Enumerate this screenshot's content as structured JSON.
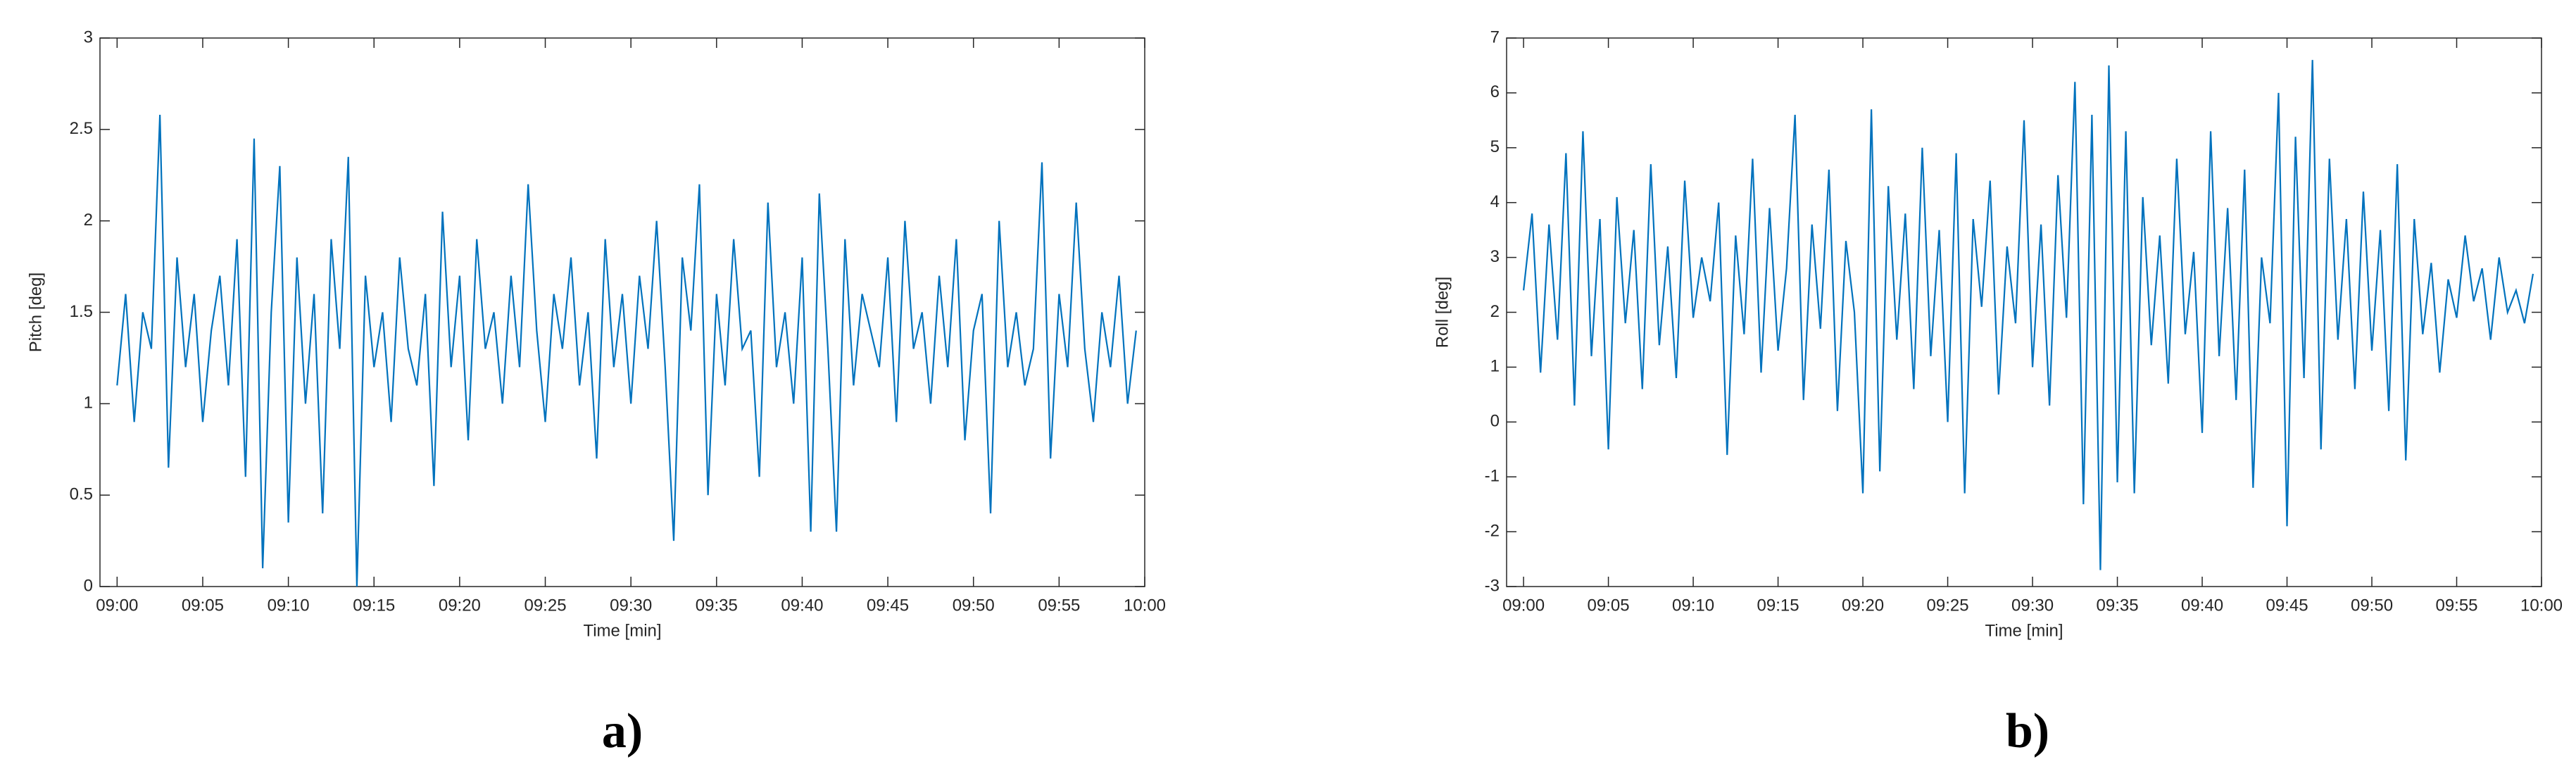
{
  "chart_data": [
    {
      "type": "line",
      "caption": "a)",
      "x_label": "Time [min]",
      "y_label": "Pitch [deg]",
      "x": [
        0,
        0.5,
        1,
        1.5,
        2,
        2.5,
        3,
        3.5,
        4,
        4.5,
        5,
        5.5,
        6,
        6.5,
        7,
        7.5,
        8,
        8.5,
        9,
        9.5,
        10,
        10.5,
        11,
        11.5,
        12,
        12.5,
        13,
        13.5,
        14,
        14.5,
        15,
        15.5,
        16,
        16.5,
        17,
        17.5,
        18,
        18.5,
        19,
        19.5,
        20,
        20.5,
        21,
        21.5,
        22,
        22.5,
        23,
        23.5,
        24,
        24.5,
        25,
        25.5,
        26,
        26.5,
        27,
        27.5,
        28,
        28.5,
        29,
        29.5,
        30,
        30.5,
        31,
        31.5,
        32,
        32.5,
        33,
        33.5,
        34,
        34.5,
        35,
        35.5,
        36,
        36.5,
        37,
        37.5,
        38,
        38.5,
        39,
        39.5,
        40,
        40.5,
        41,
        41.5,
        42,
        42.5,
        43,
        43.5,
        44,
        44.5,
        45,
        45.5,
        46,
        46.5,
        47,
        47.5,
        48,
        48.5,
        49,
        49.5,
        50,
        50.5,
        51,
        51.5,
        52,
        52.5,
        53,
        53.5,
        54,
        54.5,
        55,
        55.5,
        56,
        56.5,
        57,
        57.5,
        58,
        58.5,
        59,
        59.5
      ],
      "series": [
        {
          "name": "Pitch",
          "color": "#0072BD",
          "values": [
            1.1,
            1.6,
            0.9,
            1.5,
            1.3,
            2.58,
            0.65,
            1.8,
            1.2,
            1.6,
            0.9,
            1.4,
            1.7,
            1.1,
            1.9,
            0.6,
            2.45,
            0.1,
            1.5,
            2.3,
            0.35,
            1.8,
            1.0,
            1.6,
            0.4,
            1.9,
            1.3,
            2.35,
            0.0,
            1.7,
            1.2,
            1.5,
            0.9,
            1.8,
            1.3,
            1.1,
            1.6,
            0.55,
            2.05,
            1.2,
            1.7,
            0.8,
            1.9,
            1.3,
            1.5,
            1.0,
            1.7,
            1.2,
            2.2,
            1.4,
            0.9,
            1.6,
            1.3,
            1.8,
            1.1,
            1.5,
            0.7,
            1.9,
            1.2,
            1.6,
            1.0,
            1.7,
            1.3,
            2.0,
            1.2,
            0.25,
            1.8,
            1.4,
            2.2,
            0.5,
            1.6,
            1.1,
            1.9,
            1.3,
            1.4,
            0.6,
            2.1,
            1.2,
            1.5,
            1.0,
            1.8,
            0.3,
            2.15,
            1.3,
            0.3,
            1.9,
            1.1,
            1.6,
            1.4,
            1.2,
            1.8,
            0.9,
            2.0,
            1.3,
            1.5,
            1.0,
            1.7,
            1.2,
            1.9,
            0.8,
            1.4,
            1.6,
            0.4,
            2.0,
            1.2,
            1.5,
            1.1,
            1.3,
            2.32,
            0.7,
            1.6,
            1.2,
            2.1,
            1.3,
            0.9,
            1.5,
            1.2,
            1.7,
            1.0,
            1.4
          ]
        }
      ],
      "xlim": [
        -1,
        60
      ],
      "ylim": [
        0,
        3
      ],
      "yticks": [
        0,
        0.5,
        1,
        1.5,
        2,
        2.5,
        3
      ],
      "xticks": [
        {
          "value": 0,
          "label": "09:00"
        },
        {
          "value": 5,
          "label": "09:05"
        },
        {
          "value": 10,
          "label": "09:10"
        },
        {
          "value": 15,
          "label": "09:15"
        },
        {
          "value": 20,
          "label": "09:20"
        },
        {
          "value": 25,
          "label": "09:25"
        },
        {
          "value": 30,
          "label": "09:30"
        },
        {
          "value": 35,
          "label": "09:35"
        },
        {
          "value": 40,
          "label": "09:40"
        },
        {
          "value": 45,
          "label": "09:45"
        },
        {
          "value": 50,
          "label": "09:50"
        },
        {
          "value": 55,
          "label": "09:55"
        },
        {
          "value": 60,
          "label": "10:00"
        }
      ]
    },
    {
      "type": "line",
      "caption": "b)",
      "x_label": "Time [min]",
      "y_label": "Roll [deg]",
      "x": [
        0,
        0.5,
        1,
        1.5,
        2,
        2.5,
        3,
        3.5,
        4,
        4.5,
        5,
        5.5,
        6,
        6.5,
        7,
        7.5,
        8,
        8.5,
        9,
        9.5,
        10,
        10.5,
        11,
        11.5,
        12,
        12.5,
        13,
        13.5,
        14,
        14.5,
        15,
        15.5,
        16,
        16.5,
        17,
        17.5,
        18,
        18.5,
        19,
        19.5,
        20,
        20.5,
        21,
        21.5,
        22,
        22.5,
        23,
        23.5,
        24,
        24.5,
        25,
        25.5,
        26,
        26.5,
        27,
        27.5,
        28,
        28.5,
        29,
        29.5,
        30,
        30.5,
        31,
        31.5,
        32,
        32.5,
        33,
        33.5,
        34,
        34.5,
        35,
        35.5,
        36,
        36.5,
        37,
        37.5,
        38,
        38.5,
        39,
        39.5,
        40,
        40.5,
        41,
        41.5,
        42,
        42.5,
        43,
        43.5,
        44,
        44.5,
        45,
        45.5,
        46,
        46.5,
        47,
        47.5,
        48,
        48.5,
        49,
        49.5,
        50,
        50.5,
        51,
        51.5,
        52,
        52.5,
        53,
        53.5,
        54,
        54.5,
        55,
        55.5,
        56,
        56.5,
        57,
        57.5,
        58,
        58.5,
        59,
        59.5
      ],
      "series": [
        {
          "name": "Roll",
          "color": "#0072BD",
          "values": [
            2.4,
            3.8,
            0.9,
            3.6,
            1.5,
            4.9,
            0.3,
            5.3,
            1.2,
            3.7,
            -0.5,
            4.1,
            1.8,
            3.5,
            0.6,
            4.7,
            1.4,
            3.2,
            0.8,
            4.4,
            1.9,
            3.0,
            2.2,
            4.0,
            -0.6,
            3.4,
            1.6,
            4.8,
            0.9,
            3.9,
            1.3,
            2.8,
            5.6,
            0.4,
            3.6,
            1.7,
            4.6,
            0.2,
            3.3,
            2.0,
            -1.3,
            5.7,
            -0.9,
            4.3,
            1.5,
            3.8,
            0.6,
            5.0,
            1.2,
            3.5,
            0.0,
            4.9,
            -1.3,
            3.7,
            2.1,
            4.4,
            0.5,
            3.2,
            1.8,
            5.5,
            1.0,
            3.6,
            0.3,
            4.5,
            1.9,
            6.2,
            -1.5,
            5.6,
            -2.7,
            6.5,
            -1.1,
            5.3,
            -1.3,
            4.1,
            1.4,
            3.4,
            0.7,
            4.8,
            1.6,
            3.1,
            -0.2,
            5.3,
            1.2,
            3.9,
            0.4,
            4.6,
            -1.2,
            3.0,
            1.8,
            6.0,
            -1.9,
            5.2,
            0.8,
            6.6,
            -0.5,
            4.8,
            1.5,
            3.7,
            0.6,
            4.2,
            1.3,
            3.5,
            0.2,
            4.7,
            -0.7,
            3.7,
            1.6,
            2.9,
            0.9,
            2.6,
            1.9,
            3.4,
            2.2,
            2.8,
            1.5,
            3.0,
            2.0,
            2.4,
            1.8,
            2.7
          ]
        }
      ],
      "xlim": [
        -1,
        60
      ],
      "ylim": [
        -3,
        7
      ],
      "yticks": [
        -3,
        -2,
        -1,
        0,
        1,
        2,
        3,
        4,
        5,
        6,
        7
      ],
      "xticks": [
        {
          "value": 0,
          "label": "09:00"
        },
        {
          "value": 5,
          "label": "09:05"
        },
        {
          "value": 10,
          "label": "09:10"
        },
        {
          "value": 15,
          "label": "09:15"
        },
        {
          "value": 20,
          "label": "09:20"
        },
        {
          "value": 25,
          "label": "09:25"
        },
        {
          "value": 30,
          "label": "09:30"
        },
        {
          "value": 35,
          "label": "09:35"
        },
        {
          "value": 40,
          "label": "09:40"
        },
        {
          "value": 45,
          "label": "09:45"
        },
        {
          "value": 50,
          "label": "09:50"
        },
        {
          "value": 55,
          "label": "09:55"
        },
        {
          "value": 60,
          "label": "10:00"
        }
      ]
    }
  ]
}
